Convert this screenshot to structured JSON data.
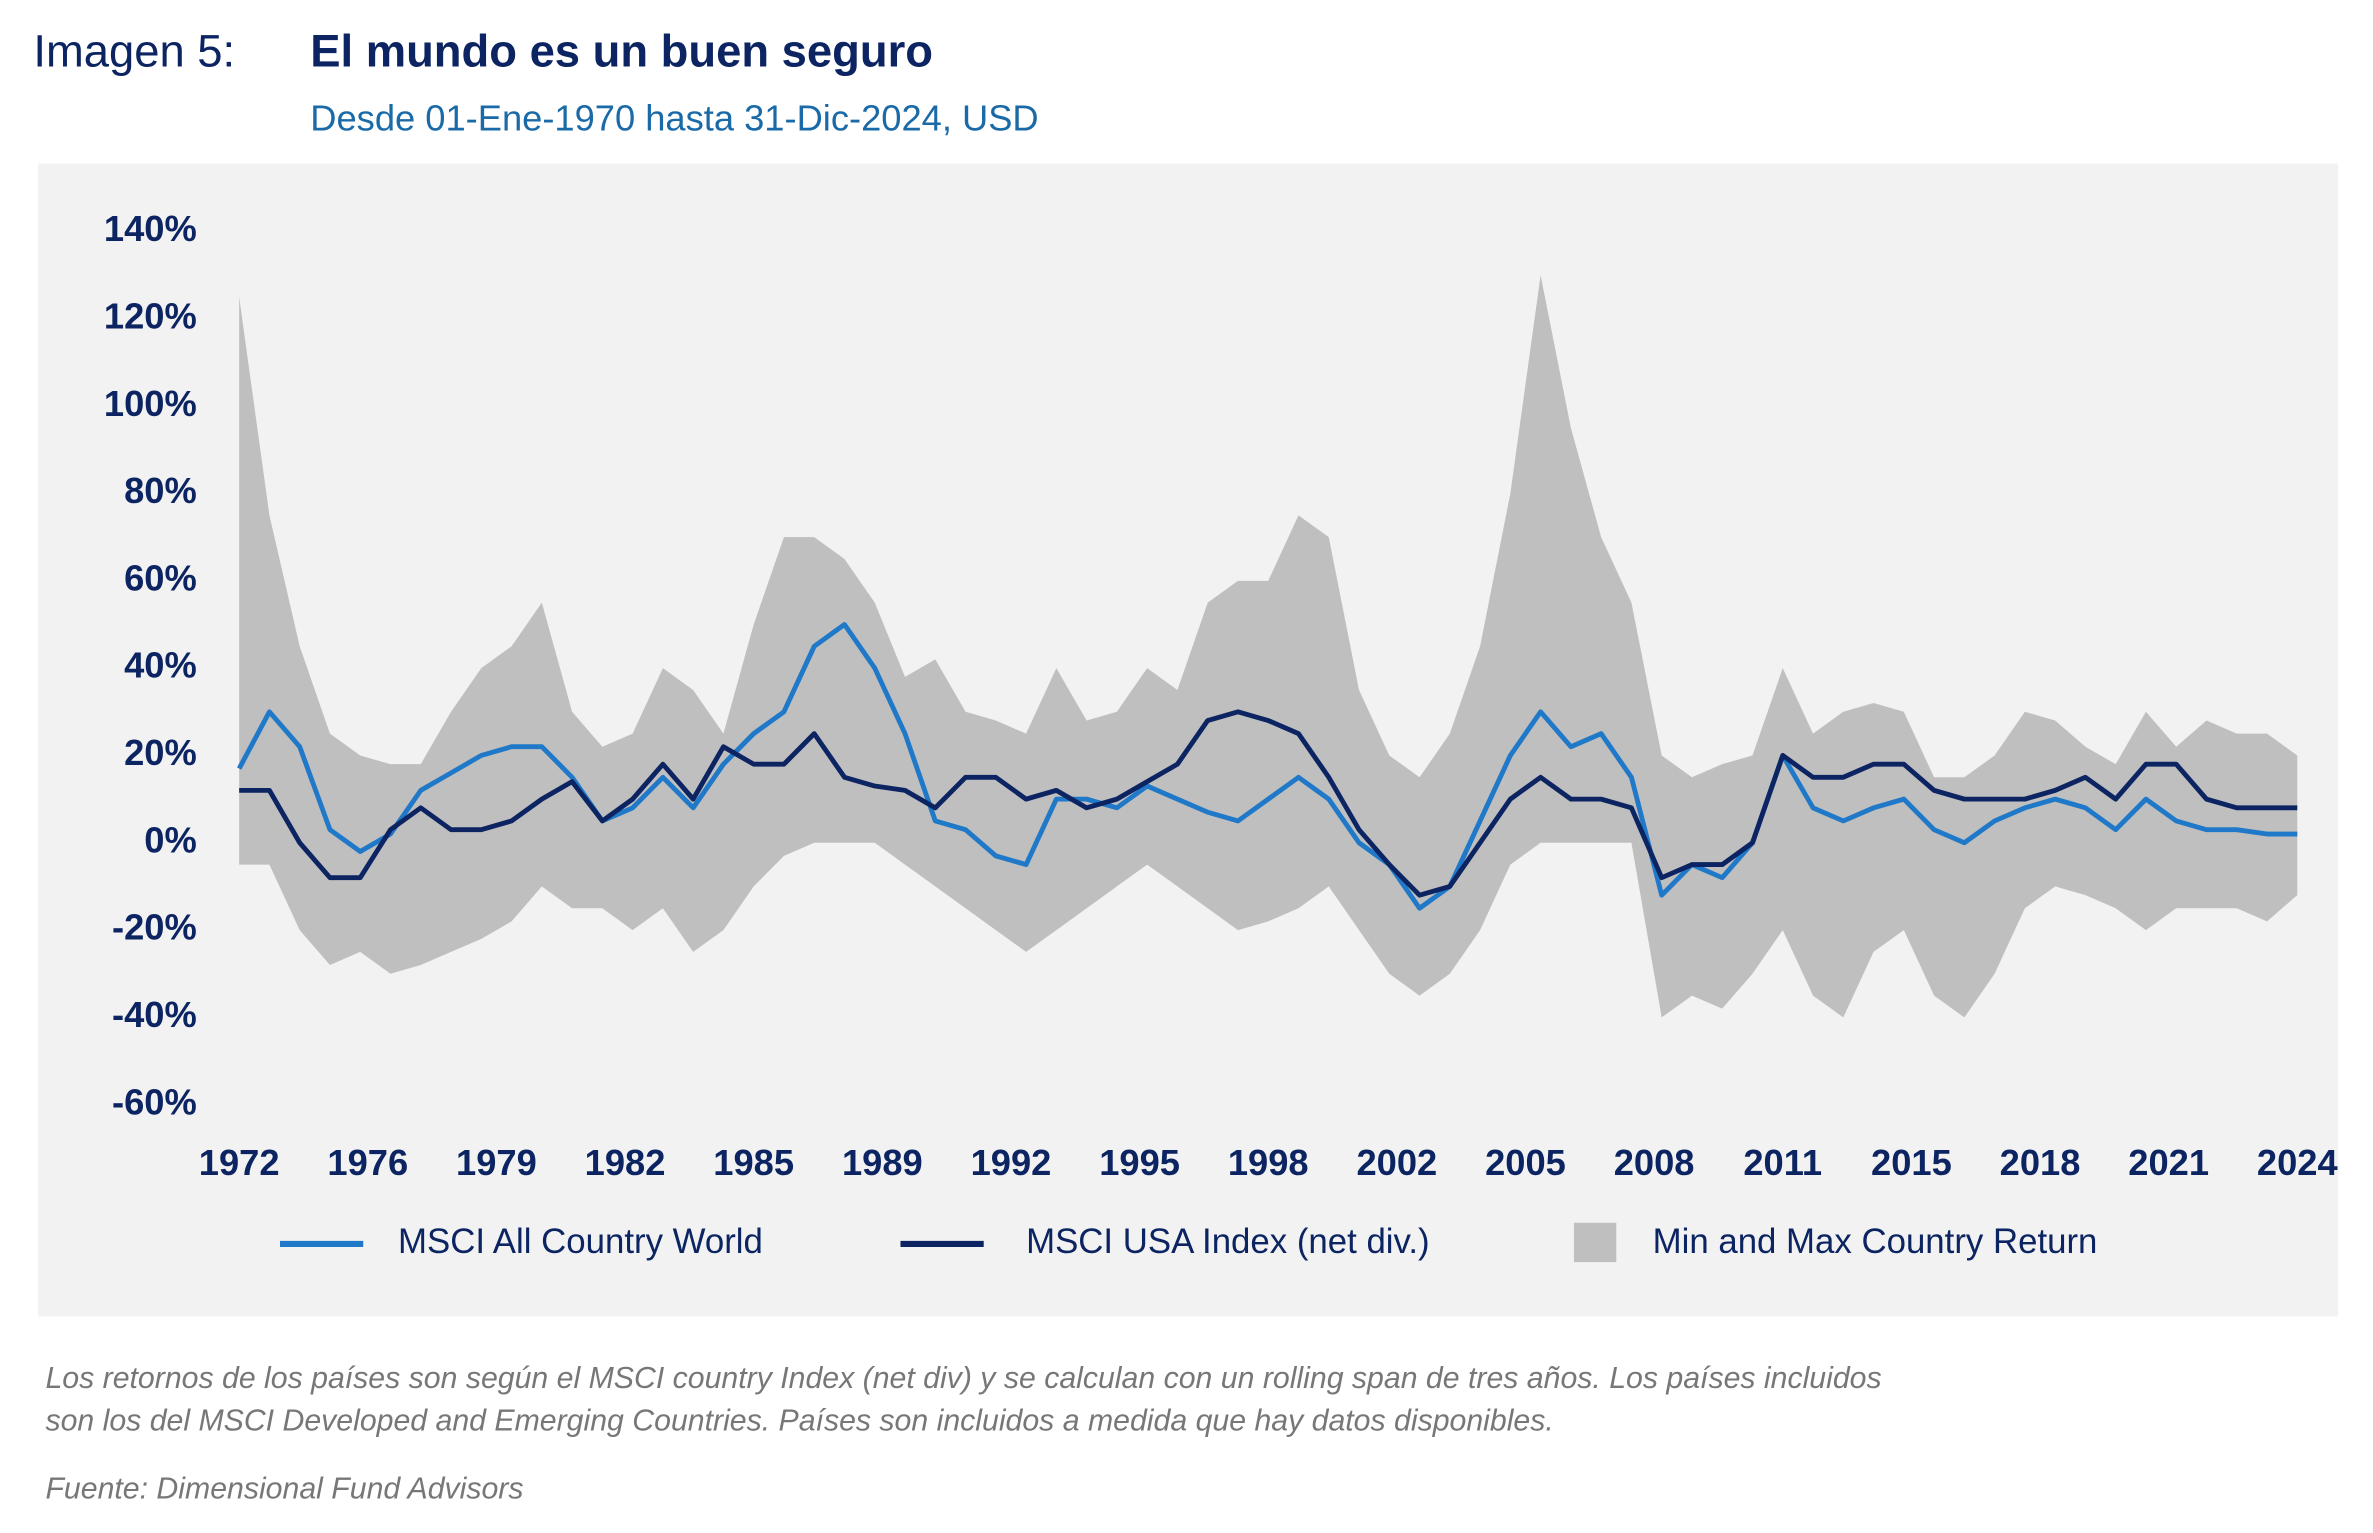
{
  "chart_data": {
    "type": "line",
    "label": "Imagen 5:",
    "title": "El mundo es un buen seguro",
    "subtitle": "Desde 01-Ene-1970 hasta 31-Dic-2024, USD",
    "xtick_labels": [
      "1972",
      "1976",
      "1979",
      "1982",
      "1985",
      "1989",
      "1992",
      "1995",
      "1998",
      "2002",
      "2005",
      "2008",
      "2011",
      "2015",
      "2018",
      "2021",
      "2024"
    ],
    "ylim": [
      -60,
      140
    ],
    "yticks": [
      {
        "value": 140,
        "label": "140%"
      },
      {
        "value": 120,
        "label": "120%"
      },
      {
        "value": 100,
        "label": "100%"
      },
      {
        "value": 80,
        "label": "80%"
      },
      {
        "value": 60,
        "label": "60%"
      },
      {
        "value": 40,
        "label": "40%"
      },
      {
        "value": 20,
        "label": "20%"
      },
      {
        "value": 0,
        "label": "0%"
      },
      {
        "value": -20,
        "label": "-20%"
      },
      {
        "value": -40,
        "label": "-40%"
      },
      {
        "value": -60,
        "label": "-60%"
      }
    ],
    "band": {
      "name": "Min and Max Country Return",
      "color": "#bfbfbf",
      "max": [
        125,
        75,
        45,
        25,
        20,
        18,
        18,
        30,
        40,
        45,
        55,
        30,
        22,
        25,
        40,
        35,
        25,
        50,
        70,
        70,
        65,
        55,
        38,
        42,
        30,
        28,
        25,
        40,
        28,
        30,
        40,
        35,
        55,
        60,
        60,
        75,
        70,
        35,
        20,
        15,
        25,
        45,
        80,
        130,
        95,
        70,
        55,
        20,
        15,
        18,
        20,
        40,
        25,
        30,
        32,
        30,
        15,
        15,
        20,
        30,
        28,
        22,
        18,
        30,
        22,
        28,
        25,
        25,
        20
      ],
      "min": [
        -5,
        -5,
        -20,
        -28,
        -25,
        -30,
        -28,
        -25,
        -22,
        -18,
        -10,
        -15,
        -15,
        -20,
        -15,
        -25,
        -20,
        -10,
        -3,
        0,
        0,
        0,
        -5,
        -10,
        -15,
        -20,
        -25,
        -20,
        -15,
        -10,
        -5,
        -10,
        -15,
        -20,
        -18,
        -15,
        -10,
        -20,
        -30,
        -35,
        -30,
        -20,
        -5,
        0,
        0,
        0,
        0,
        -40,
        -35,
        -38,
        -30,
        -20,
        -35,
        -40,
        -25,
        -20,
        -35,
        -40,
        -30,
        -15,
        -10,
        -12,
        -15,
        -20,
        -15,
        -15,
        -15,
        -18,
        -12
      ]
    },
    "series": [
      {
        "name": "MSCI All Country World",
        "color": "#1f78c8",
        "values": [
          17,
          30,
          22,
          3,
          -2,
          2,
          12,
          16,
          20,
          22,
          22,
          15,
          5,
          8,
          15,
          8,
          18,
          25,
          30,
          45,
          50,
          40,
          25,
          5,
          3,
          -3,
          -5,
          10,
          10,
          8,
          13,
          10,
          7,
          5,
          10,
          15,
          10,
          0,
          -5,
          -15,
          -10,
          5,
          20,
          30,
          22,
          25,
          15,
          -12,
          -5,
          -8,
          0,
          20,
          8,
          5,
          8,
          10,
          3,
          0,
          5,
          8,
          10,
          8,
          3,
          10,
          5,
          3,
          3,
          2,
          2
        ]
      },
      {
        "name": "MSCI USA Index (net div.)",
        "color": "#0c2461",
        "values": [
          12,
          12,
          0,
          -8,
          -8,
          3,
          8,
          3,
          3,
          5,
          10,
          14,
          5,
          10,
          18,
          10,
          22,
          18,
          18,
          25,
          15,
          13,
          12,
          8,
          15,
          15,
          10,
          12,
          8,
          10,
          14,
          18,
          28,
          30,
          28,
          25,
          15,
          3,
          -5,
          -12,
          -10,
          0,
          10,
          15,
          10,
          10,
          8,
          -8,
          -5,
          -5,
          0,
          20,
          15,
          15,
          18,
          18,
          12,
          10,
          10,
          10,
          12,
          15,
          10,
          18,
          18,
          10,
          8,
          8,
          8
        ]
      }
    ],
    "notes": [
      "Los retornos de los países son según el MSCI country Index (net div) y se calculan con un rolling span de tres años. Los países incluidos",
      "son los del MSCI Developed and Emerging Countries. Países son incluidos a medida que hay datos disponibles."
    ],
    "source": "Fuente: Dimensional Fund Advisors"
  }
}
